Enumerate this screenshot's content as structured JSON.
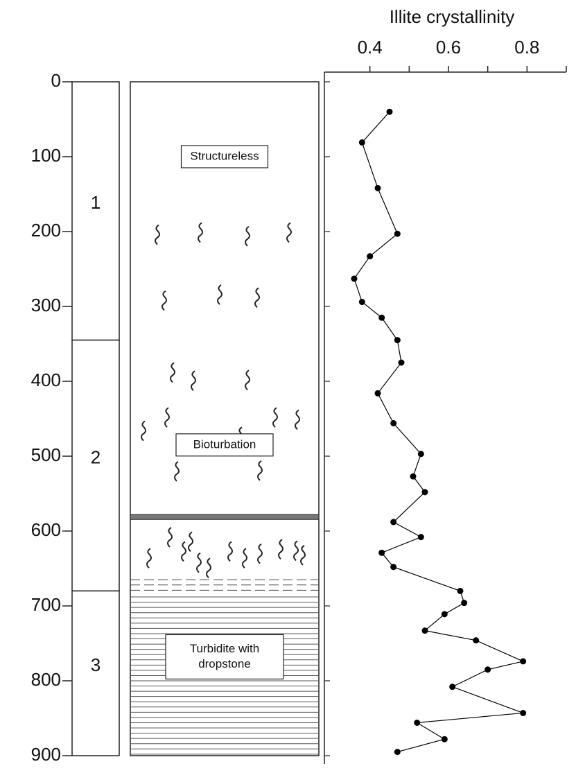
{
  "chart_data": {
    "type": "line",
    "title": "Illite crystallinity",
    "xlim": [
      0.3,
      0.9
    ],
    "xticks": [
      0.4,
      0.6,
      0.8
    ],
    "xminor_ticks": [
      0.5,
      0.7,
      0.9
    ],
    "ylim": [
      0,
      900
    ],
    "yticks": [
      0,
      100,
      200,
      300,
      400,
      500,
      600,
      700,
      800,
      900
    ],
    "y_inverted": true,
    "series": [
      {
        "color": "#000000",
        "x": [
          0.45,
          0.38,
          0.42,
          0.47,
          0.4,
          0.36,
          0.38,
          0.43,
          0.47,
          0.48,
          0.42,
          0.46,
          0.53,
          0.51,
          0.54,
          0.46,
          0.53,
          0.43,
          0.46,
          0.63,
          0.64,
          0.59,
          0.54,
          0.67,
          0.79,
          0.7,
          0.61,
          0.79,
          0.52,
          0.59,
          0.47
        ],
        "values": [
          40,
          81,
          142,
          203,
          233,
          263,
          294,
          315,
          345,
          375,
          416,
          456,
          497,
          527,
          548,
          588,
          608,
          629,
          648,
          680,
          696,
          711,
          733,
          746,
          774,
          785,
          808,
          843,
          856,
          878,
          895
        ]
      }
    ],
    "units": [
      {
        "label": "1",
        "top": 0,
        "bottom": 345
      },
      {
        "label": "2",
        "top": 345,
        "bottom": 680
      },
      {
        "label": "3",
        "top": 680,
        "bottom": 900
      }
    ],
    "lithology": [
      {
        "lines": [
          "Structureless"
        ]
      },
      {
        "lines": [
          "Bioturbation"
        ]
      },
      {
        "lines": [
          "Turbidite with",
          "dropstone"
        ]
      }
    ]
  }
}
